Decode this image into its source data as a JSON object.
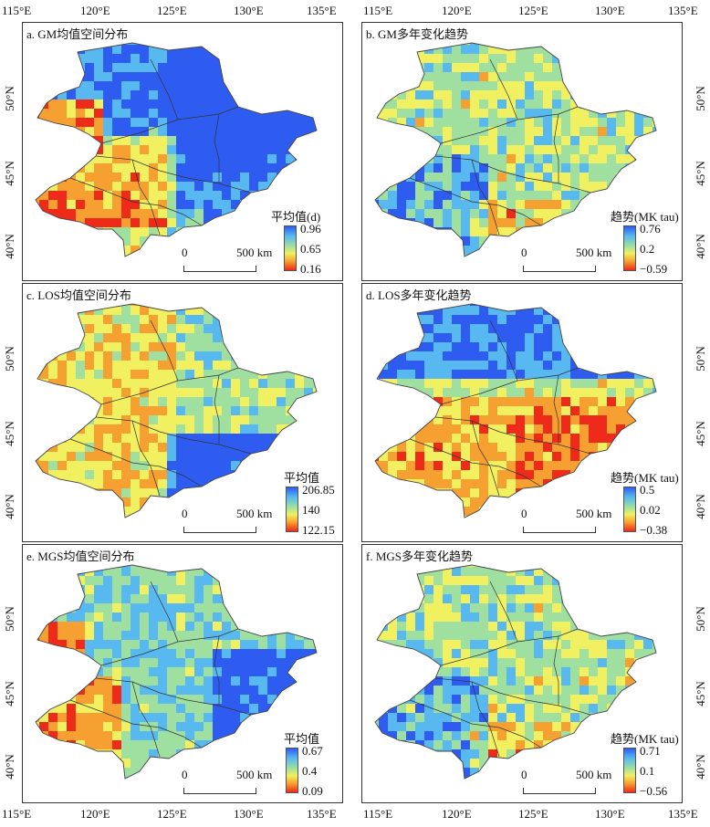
{
  "axes": {
    "lon_ticks": [
      "115°E",
      "120°E",
      "125°E",
      "130°E",
      "135°E"
    ],
    "lat_ticks": [
      "50°N",
      "45°N",
      "40°N"
    ]
  },
  "panels": [
    {
      "title": "a. GM均值空间分布",
      "legend_title": "平均值(d)",
      "legend_values": [
        "0.96",
        "0.65",
        "0.16"
      ],
      "scheme": "a"
    },
    {
      "title": "b. GM多年变化趋势",
      "legend_title": "趋势(MK tau)",
      "legend_values": [
        "0.76",
        "0.2",
        "−0.59"
      ],
      "scheme": "b"
    },
    {
      "title": "c. LOS均值空间分布",
      "legend_title": "平均值",
      "legend_values": [
        "206.85",
        "140",
        "122.15"
      ],
      "scheme": "c"
    },
    {
      "title": "d. LOS多年变化趋势",
      "legend_title": "趋势(MK tau)",
      "legend_values": [
        "0.5",
        "0.02",
        "−0.38"
      ],
      "scheme": "d"
    },
    {
      "title": "e. MGS均值空间分布",
      "legend_title": "平均值",
      "legend_values": [
        "0.67",
        "0.4",
        "0.09"
      ],
      "scheme": "e"
    },
    {
      "title": "f. MGS多年变化趋势",
      "legend_title": "趋势(MK tau)",
      "legend_values": [
        "0.71",
        "0.1",
        "−0.56"
      ],
      "scheme": "f"
    }
  ],
  "scalebar": {
    "start": "0",
    "end": "500 km"
  },
  "colors": {
    "high": "#2f5cf0",
    "mid_high": "#58b8f0",
    "mid": "#9fe0a0",
    "mid_low": "#f0f060",
    "low_mid": "#f5a030",
    "low": "#ee2a1a"
  }
}
